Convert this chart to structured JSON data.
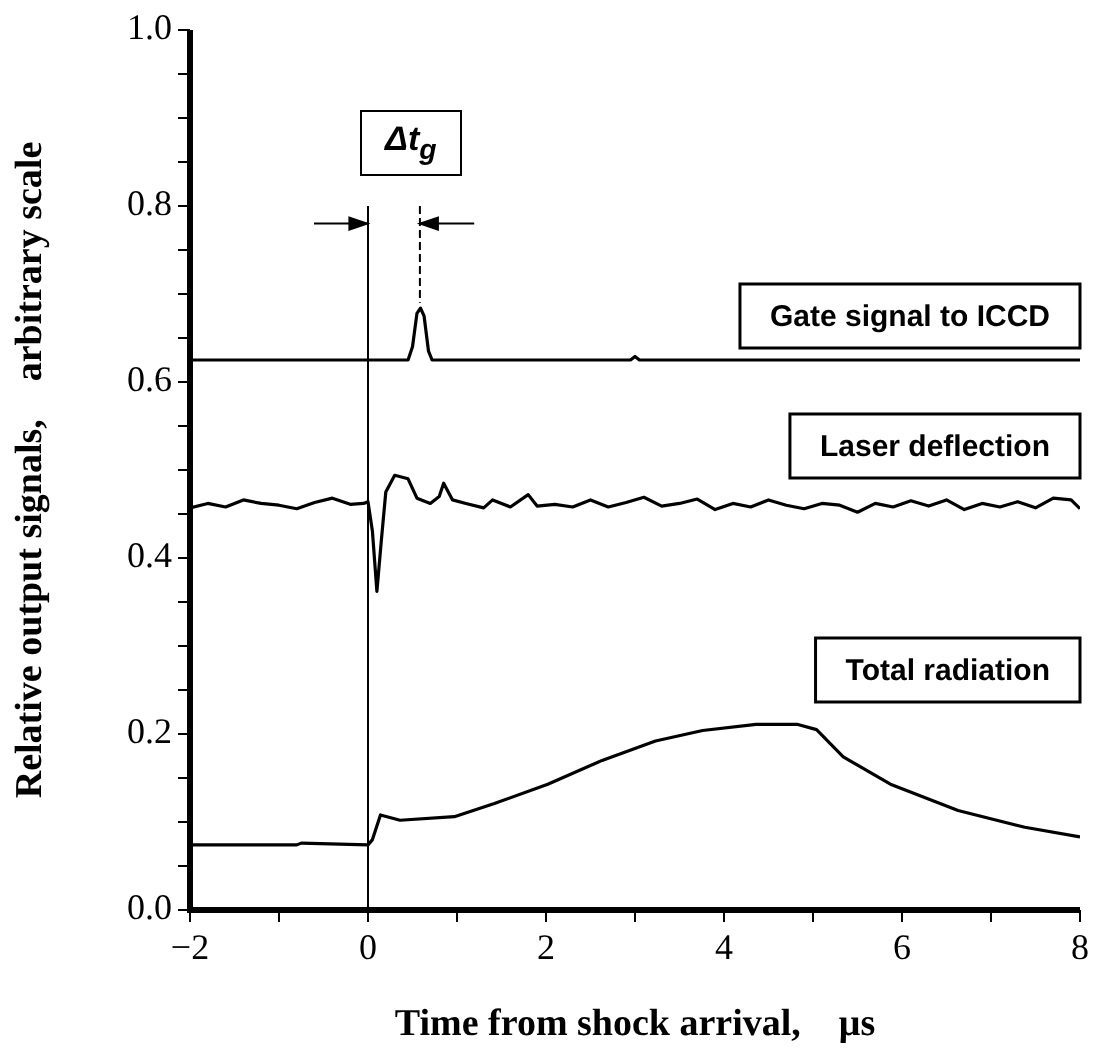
{
  "chart_data": {
    "type": "line",
    "xlabel": "Time from shock arrival,    μs",
    "ylabel": "Relative output signals,    arbitrary scale",
    "annotations": [
      "Δt$_{g}$"
    ],
    "xlim": [
      -2,
      8
    ],
    "ylim": [
      0,
      1
    ],
    "xticks": [
      {
        "value": -2,
        "label": "−2"
      },
      {
        "value": -1,
        "label": null
      },
      {
        "value": 0,
        "label": "0"
      },
      {
        "value": 1,
        "label": null
      },
      {
        "value": 2,
        "label": "2"
      },
      {
        "value": 3,
        "label": null
      },
      {
        "value": 4,
        "label": "4"
      },
      {
        "value": 5,
        "label": null
      },
      {
        "value": 6,
        "label": "6"
      },
      {
        "value": 7,
        "label": null
      },
      {
        "value": 8,
        "label": "8"
      }
    ],
    "yticks": [
      {
        "value": 0,
        "label": "0.0"
      },
      {
        "value": 0.05,
        "label": null
      },
      {
        "value": 0.1,
        "label": null
      },
      {
        "value": 0.15,
        "label": null
      },
      {
        "value": 0.2,
        "label": "0.2"
      },
      {
        "value": 0.25,
        "label": null
      },
      {
        "value": 0.3,
        "label": null
      },
      {
        "value": 0.35,
        "label": null
      },
      {
        "value": 0.4,
        "label": "0.4"
      },
      {
        "value": 0.45,
        "label": null
      },
      {
        "value": 0.5,
        "label": null
      },
      {
        "value": 0.55,
        "label": null
      },
      {
        "value": 0.6,
        "label": "0.6"
      },
      {
        "value": 0.65,
        "label": null
      },
      {
        "value": 0.7,
        "label": null
      },
      {
        "value": 0.75,
        "label": null
      },
      {
        "value": 0.8,
        "label": "0.8"
      },
      {
        "value": 0.85,
        "label": null
      },
      {
        "value": 0.9,
        "label": null
      },
      {
        "value": 0.95,
        "label": null
      },
      {
        "value": 1,
        "label": "1.0"
      }
    ],
    "ref_lines": [
      {
        "axis": "x",
        "value": 0,
        "color": "#000000"
      }
    ],
    "grid": false,
    "legend": false,
    "marker": "none",
    "line_style": "solid",
    "series": [
      {
        "name": "Gate signal to ICCD",
        "color": "#000000",
        "x": [
          -2,
          0.45,
          0.5,
          0.55,
          0.59,
          0.63,
          0.68,
          0.72,
          2.95,
          3.0,
          3.05,
          8
        ],
        "values": [
          0.625,
          0.625,
          0.64,
          0.678,
          0.684,
          0.675,
          0.635,
          0.625,
          0.625,
          0.629,
          0.625,
          0.625
        ]
      },
      {
        "name": "Laser deflection",
        "color": "#000000",
        "x": [
          -2,
          -1.8,
          -1.6,
          -1.4,
          -1.2,
          -1,
          -0.8,
          -0.6,
          -0.4,
          -0.2,
          -0.05,
          0,
          0.05,
          0.1,
          0.15,
          0.2,
          0.3,
          0.45,
          0.55,
          0.7,
          0.8,
          0.85,
          0.95,
          1.1,
          1.3,
          1.4,
          1.6,
          1.8,
          1.9,
          2.1,
          2.3,
          2.5,
          2.7,
          2.9,
          3.1,
          3.3,
          3.5,
          3.7,
          3.9,
          4.1,
          4.3,
          4.5,
          4.7,
          4.9,
          5.1,
          5.3,
          5.5,
          5.7,
          5.9,
          6.1,
          6.3,
          6.5,
          6.7,
          6.9,
          7.1,
          7.3,
          7.5,
          7.7,
          7.9,
          8
        ],
        "values": [
          0.457,
          0.462,
          0.458,
          0.466,
          0.462,
          0.46,
          0.456,
          0.463,
          0.468,
          0.461,
          0.462,
          0.464,
          0.43,
          0.362,
          0.42,
          0.475,
          0.494,
          0.49,
          0.468,
          0.462,
          0.47,
          0.485,
          0.466,
          0.462,
          0.457,
          0.466,
          0.458,
          0.472,
          0.459,
          0.461,
          0.458,
          0.466,
          0.458,
          0.463,
          0.469,
          0.459,
          0.462,
          0.467,
          0.455,
          0.462,
          0.458,
          0.466,
          0.46,
          0.456,
          0.462,
          0.46,
          0.452,
          0.462,
          0.458,
          0.465,
          0.459,
          0.466,
          0.455,
          0.462,
          0.458,
          0.464,
          0.457,
          0.468,
          0.466,
          0.456
        ]
      },
      {
        "name": "Total radiation",
        "color": "#000000",
        "x": [
          -2,
          -0.8,
          -0.75,
          0,
          0.05,
          0.14,
          0.36,
          0.97,
          1.42,
          2.02,
          2.63,
          3.23,
          3.76,
          4.36,
          4.82,
          5.04,
          5.34,
          5.87,
          6.63,
          7.38,
          8
        ],
        "values": [
          0.074,
          0.074,
          0.076,
          0.074,
          0.08,
          0.108,
          0.102,
          0.106,
          0.121,
          0.143,
          0.17,
          0.192,
          0.204,
          0.211,
          0.211,
          0.205,
          0.174,
          0.143,
          0.113,
          0.094,
          0.083
        ]
      }
    ]
  }
}
